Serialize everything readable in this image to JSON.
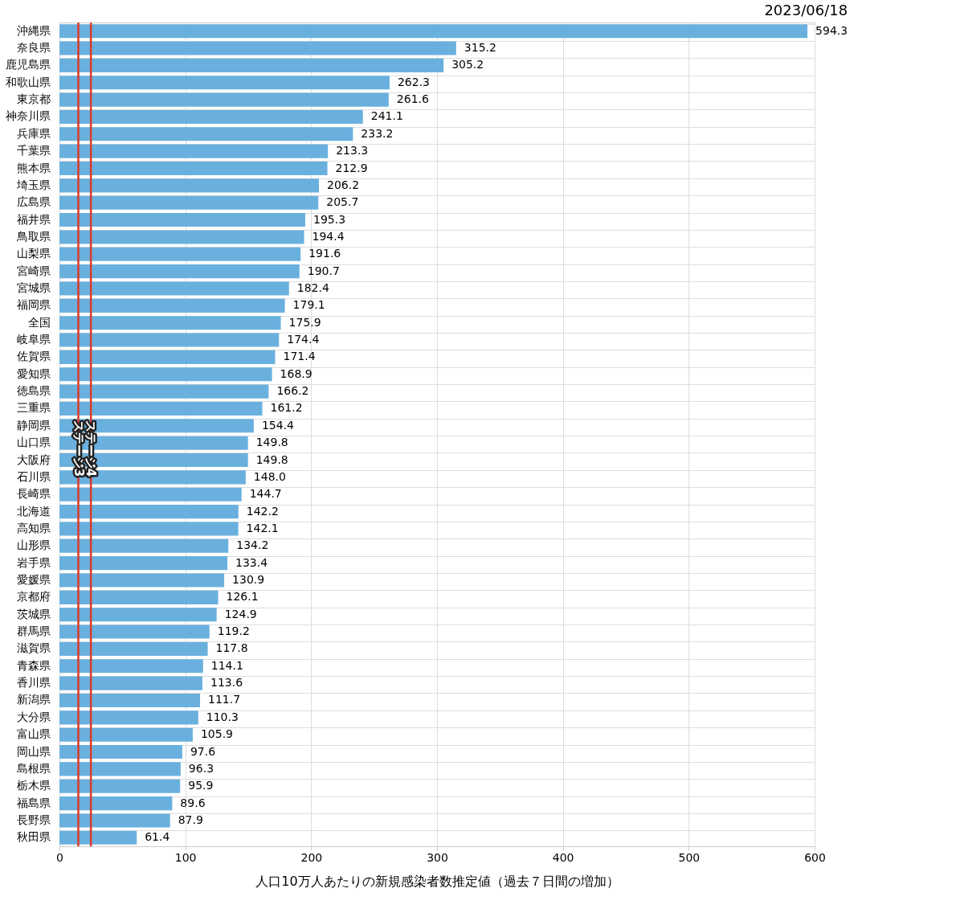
{
  "chart_data": {
    "type": "bar",
    "orientation": "horizontal",
    "categories": [
      "沖縄県",
      "奈良県",
      "鹿児島県",
      "和歌山県",
      "東京都",
      "神奈川県",
      "兵庫県",
      "千葉県",
      "熊本県",
      "埼玉県",
      "広島県",
      "福井県",
      "鳥取県",
      "山梨県",
      "宮崎県",
      "宮城県",
      "福岡県",
      "全国",
      "岐阜県",
      "佐賀県",
      "愛知県",
      "徳島県",
      "三重県",
      "静岡県",
      "山口県",
      "大阪府",
      "石川県",
      "長崎県",
      "北海道",
      "高知県",
      "山形県",
      "岩手県",
      "愛媛県",
      "京都府",
      "茨城県",
      "群馬県",
      "滋賀県",
      "青森県",
      "香川県",
      "新潟県",
      "大分県",
      "富山県",
      "岡山県",
      "島根県",
      "栃木県",
      "福島県",
      "長野県",
      "秋田県"
    ],
    "values": [
      594.3,
      315.2,
      305.2,
      262.3,
      261.6,
      241.1,
      233.2,
      213.3,
      212.9,
      206.2,
      205.7,
      195.3,
      194.4,
      191.6,
      190.7,
      182.4,
      179.1,
      175.9,
      174.4,
      171.4,
      168.9,
      166.2,
      161.2,
      154.4,
      149.8,
      149.8,
      148.0,
      144.7,
      142.2,
      142.1,
      134.2,
      133.4,
      130.9,
      126.1,
      124.9,
      119.2,
      117.8,
      114.1,
      113.6,
      111.7,
      110.3,
      105.9,
      97.6,
      96.3,
      95.9,
      89.6,
      87.9,
      61.4
    ],
    "value_labels": [
      "594.3",
      "315.2",
      "305.2",
      "262.3",
      "261.6",
      "241.1",
      "233.2",
      "213.3",
      "212.9",
      "206.2",
      "205.7",
      "195.3",
      "194.4",
      "191.6",
      "190.7",
      "182.4",
      "179.1",
      "175.9",
      "174.4",
      "171.4",
      "168.9",
      "166.2",
      "161.2",
      "154.4",
      "149.8",
      "149.8",
      "148.0",
      "144.7",
      "142.2",
      "142.1",
      "134.2",
      "133.4",
      "130.9",
      "126.1",
      "124.9",
      "119.2",
      "117.8",
      "114.1",
      "113.6",
      "111.7",
      "110.3",
      "105.9",
      "97.6",
      "96.3",
      "95.9",
      "89.6",
      "87.9",
      "61.4"
    ],
    "color": "#6ab0de",
    "xlabel": "人口10万人あたりの新規感染者数推定値（過去７日間の増加）",
    "xlim": [
      0,
      600
    ],
    "xticks": [
      0,
      100,
      200,
      300,
      400,
      500,
      600
    ],
    "grid": true,
    "ref_lines": [
      {
        "axis": "x",
        "value": 15,
        "label": "ステージ3",
        "color": "#d93a2b"
      },
      {
        "axis": "x",
        "value": 25,
        "label": "ステージ4",
        "color": "#d93a2b"
      }
    ],
    "annotations": [
      "2023/06/18"
    ]
  }
}
